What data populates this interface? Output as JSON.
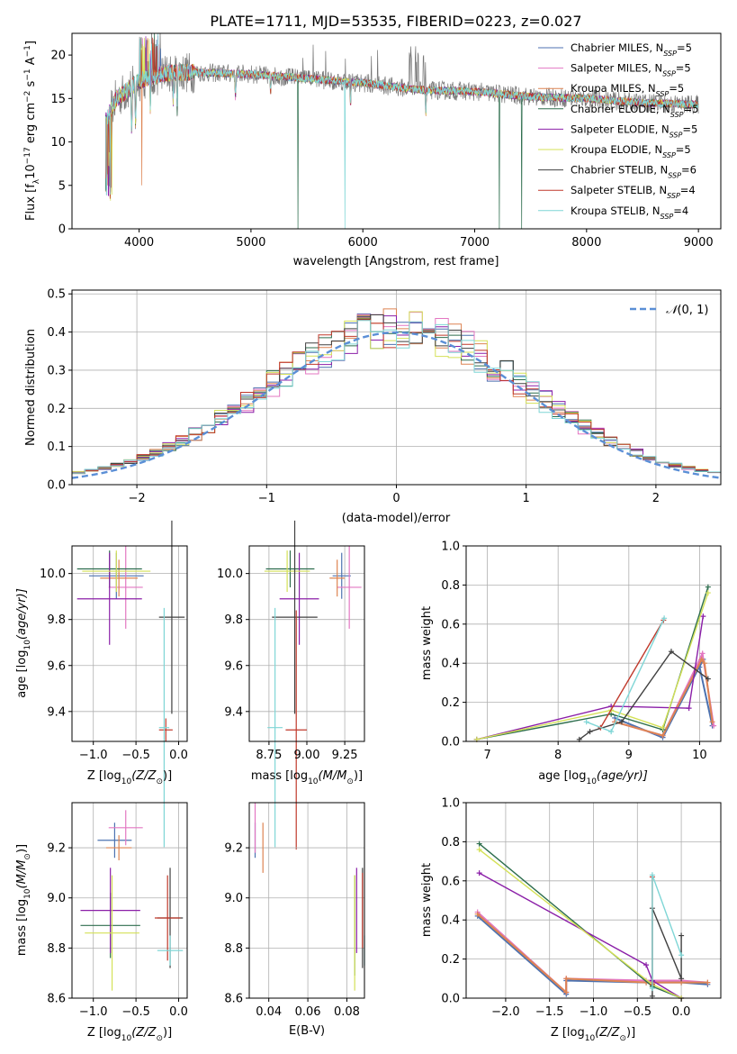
{
  "chart_data": [
    {
      "type": "line",
      "title": "PLATE=1711, MJD=53535, FIBERID=0223, z=0.027",
      "xlabel": "wavelength [Angstrom, rest frame]",
      "ylabel_parts": {
        "a": "Flux [f",
        "b": "λ",
        "c": "10",
        "d": "−17",
        "e": " erg cm",
        "f": "−2",
        "g": " s",
        "h": "−1",
        "i": " A",
        "j": "−1",
        "k": "]"
      },
      "xlim": [
        3400,
        9200
      ],
      "ylim": [
        0,
        22.5
      ],
      "xticks": [
        "4000",
        "5000",
        "6000",
        "7000",
        "8000",
        "9000"
      ],
      "yticks": [
        "0",
        "5",
        "10",
        "15",
        "20"
      ],
      "legend_position": "upper right",
      "legend": [
        {
          "pre": "Chabrier MILES, N",
          "sub": "SSP",
          "post": "=5",
          "color": "#4c72b0"
        },
        {
          "pre": "Salpeter MILES, N",
          "sub": "SSP",
          "post": "=5",
          "color": "#e377c2"
        },
        {
          "pre": "Kroupa MILES, N",
          "sub": "SSP",
          "post": "=5",
          "color": "#dd8452"
        },
        {
          "pre": "Chabrier ELODIE, N",
          "sub": "SSP",
          "post": "=5",
          "color": "#2e6e4e"
        },
        {
          "pre": "Salpeter ELODIE, N",
          "sub": "SSP",
          "post": "=5",
          "color": "#8b1fa8"
        },
        {
          "pre": "Kroupa ELODIE, N",
          "sub": "SSP",
          "post": "=5",
          "color": "#d4e157"
        },
        {
          "pre": "Chabrier STELIB, N",
          "sub": "SSP",
          "post": "=6",
          "color": "#404040"
        },
        {
          "pre": "Salpeter STELIB, N",
          "sub": "SSP",
          "post": "=4",
          "color": "#c0392b"
        },
        {
          "pre": "Kroupa STELIB, N",
          "sub": "SSP",
          "post": "=4",
          "color": "#7fd6d6"
        }
      ],
      "spectrum_profile": {
        "x": [
          3700,
          3800,
          3900,
          4000,
          4100,
          4300,
          4500,
          5000,
          5500,
          6000,
          6500,
          7000,
          7500,
          8000,
          8500,
          9000
        ],
        "y": [
          12.5,
          15.0,
          16.0,
          17.0,
          17.5,
          18.0,
          18.0,
          17.8,
          17.3,
          16.8,
          16.0,
          15.8,
          15.2,
          15.0,
          14.5,
          14.3
        ]
      }
    },
    {
      "type": "histogram",
      "xlabel": "(data-model)/error",
      "ylabel": "Normed distribution",
      "xlim": [
        -2.5,
        2.5
      ],
      "ylim": [
        0,
        0.51
      ],
      "xticks": [
        "−2",
        "−1",
        "0",
        "1",
        "2"
      ],
      "yticks": [
        "0.0",
        "0.1",
        "0.2",
        "0.3",
        "0.4",
        "0.5"
      ],
      "bin_width": 0.1,
      "reference_curve": {
        "name": "N(0,1)",
        "label_script": "𝒩",
        "label_rest": "(0, 1)",
        "color": "#5b8fd6"
      },
      "series": [
        {
          "name": "Chabrier MILES",
          "color": "#4c72b0"
        },
        {
          "name": "Salpeter MILES",
          "color": "#e377c2"
        },
        {
          "name": "Kroupa MILES",
          "color": "#dd8452"
        },
        {
          "name": "Chabrier ELODIE",
          "color": "#2e6e4e"
        },
        {
          "name": "Salpeter ELODIE",
          "color": "#8b1fa8"
        },
        {
          "name": "Kroupa ELODIE",
          "color": "#d4e157"
        },
        {
          "name": "Chabrier STELIB",
          "color": "#404040"
        },
        {
          "name": "Salpeter STELIB",
          "color": "#c0392b"
        },
        {
          "name": "Kroupa STELIB",
          "color": "#7fd6d6"
        }
      ]
    },
    {
      "type": "errorbar",
      "xlabel_parts": {
        "a": "Z [log",
        "b": "10",
        "c": "(Z/Z",
        "d": "⊙",
        "e": ")]"
      },
      "ylabel_parts": {
        "a": "age  [log",
        "b": "10",
        "c": "(age/yr)]"
      },
      "xlim": [
        -1.25,
        0.1
      ],
      "ylim": [
        9.27,
        10.12
      ],
      "xticks": [
        "−1.0",
        "−0.5",
        "0.0"
      ],
      "yticks": [
        "9.4",
        "9.6",
        "9.8",
        "10.0"
      ],
      "points": [
        {
          "x": -0.73,
          "y": 9.99,
          "xerr": 0.32,
          "yerr": 0.1,
          "color": "#4c72b0"
        },
        {
          "x": -0.62,
          "y": 9.94,
          "xerr": 0.2,
          "yerr": 0.18,
          "color": "#e377c2"
        },
        {
          "x": -0.7,
          "y": 9.98,
          "xerr": 0.22,
          "yerr": 0.08,
          "color": "#dd8452"
        },
        {
          "x": -0.81,
          "y": 10.02,
          "xerr": 0.38,
          "yerr": 0.08,
          "color": "#2e6e4e"
        },
        {
          "x": -0.81,
          "y": 9.89,
          "xerr": 0.38,
          "yerr": 0.2,
          "color": "#8b1fa8"
        },
        {
          "x": -0.73,
          "y": 10.01,
          "xerr": 0.4,
          "yerr": 0.09,
          "color": "#d4e157"
        },
        {
          "x": -0.08,
          "y": 9.81,
          "xerr": 0.15,
          "yerr": 0.42,
          "color": "#404040"
        },
        {
          "x": -0.15,
          "y": 9.32,
          "xerr": 0.08,
          "yerr": 0.05,
          "color": "#c0392b"
        },
        {
          "x": -0.17,
          "y": 9.33,
          "xerr": 0.06,
          "yerr": 0.52,
          "color": "#7fd6d6"
        }
      ]
    },
    {
      "type": "errorbar",
      "xlabel_parts": {
        "a": "mass [log",
        "b": "10",
        "c": "(M/M",
        "d": "⊙",
        "e": ")]"
      },
      "ylabel": "",
      "xlim": [
        8.62,
        9.38
      ],
      "ylim": [
        9.27,
        10.12
      ],
      "xticks": [
        "8.75",
        "9.00",
        "9.25"
      ],
      "yticks": [
        "9.4",
        "9.6",
        "9.8",
        "10.0"
      ],
      "points": [
        {
          "x": 9.23,
          "y": 9.99,
          "xerr": 0.06,
          "yerr": 0.1,
          "color": "#4c72b0"
        },
        {
          "x": 9.28,
          "y": 9.94,
          "xerr": 0.08,
          "yerr": 0.18,
          "color": "#e377c2"
        },
        {
          "x": 9.2,
          "y": 9.98,
          "xerr": 0.05,
          "yerr": 0.08,
          "color": "#dd8452"
        },
        {
          "x": 8.89,
          "y": 10.02,
          "xerr": 0.16,
          "yerr": 0.08,
          "color": "#2e6e4e"
        },
        {
          "x": 8.95,
          "y": 9.89,
          "xerr": 0.13,
          "yerr": 0.2,
          "color": "#8b1fa8"
        },
        {
          "x": 8.87,
          "y": 10.01,
          "xerr": 0.15,
          "yerr": 0.09,
          "color": "#d4e157"
        },
        {
          "x": 8.92,
          "y": 9.81,
          "xerr": 0.15,
          "yerr": 0.42,
          "color": "#404040"
        },
        {
          "x": 8.93,
          "y": 9.32,
          "xerr": 0.07,
          "yerr": 0.52,
          "color": "#c0392b"
        },
        {
          "x": 8.79,
          "y": 9.33,
          "xerr": 0.05,
          "yerr": 0.52,
          "color": "#7fd6d6"
        }
      ]
    },
    {
      "type": "line",
      "xlabel_parts": {
        "a": "age  [log",
        "b": "10",
        "c": "(age/yr)]"
      },
      "ylabel": "mass weight",
      "xlim": [
        6.7,
        10.3
      ],
      "ylim": [
        0,
        1.0
      ],
      "xticks": [
        "7",
        "8",
        "9",
        "10"
      ],
      "yticks": [
        "0.0",
        "0.2",
        "0.4",
        "0.6",
        "0.8",
        "1.0"
      ],
      "series": [
        {
          "name": "Chabrier MILES",
          "color": "#4c72b0",
          "x": [
            8.8,
            9.48,
            10.05,
            10.0,
            10.18
          ],
          "y": [
            0.12,
            0.02,
            0.42,
            0.38,
            0.08
          ]
        },
        {
          "name": "Salpeter MILES",
          "color": "#e377c2",
          "x": [
            8.8,
            9.48,
            9.95,
            10.04,
            10.2
          ],
          "y": [
            0.1,
            0.03,
            0.38,
            0.45,
            0.08
          ]
        },
        {
          "name": "Kroupa MILES",
          "color": "#dd8452",
          "x": [
            8.8,
            9.48,
            10.03,
            10.07,
            10.18
          ],
          "y": [
            0.1,
            0.03,
            0.42,
            0.4,
            0.1
          ]
        },
        {
          "name": "Chabrier ELODIE",
          "color": "#2e6e4e",
          "x": [
            6.85,
            8.75,
            9.48,
            10.12
          ],
          "y": [
            0.01,
            0.14,
            0.06,
            0.79
          ]
        },
        {
          "name": "Salpeter ELODIE",
          "color": "#8b1fa8",
          "x": [
            6.85,
            8.75,
            9.85,
            10.05
          ],
          "y": [
            0.01,
            0.18,
            0.17,
            0.64
          ]
        },
        {
          "name": "Kroupa ELODIE",
          "color": "#d4e157",
          "x": [
            6.85,
            8.75,
            9.48,
            10.12
          ],
          "y": [
            0.01,
            0.16,
            0.07,
            0.76
          ]
        },
        {
          "name": "Chabrier STELIB",
          "color": "#404040",
          "x": [
            8.3,
            8.45,
            8.9,
            9.6,
            10.12
          ],
          "y": [
            0.01,
            0.05,
            0.1,
            0.46,
            0.32
          ]
        },
        {
          "name": "Salpeter STELIB",
          "color": "#c0392b",
          "x": [
            8.6,
            9.49
          ],
          "y": [
            0.07,
            0.62
          ]
        },
        {
          "name": "Kroupa STELIB",
          "color": "#7fd6d6",
          "x": [
            8.4,
            8.75,
            9.5
          ],
          "y": [
            0.1,
            0.05,
            0.63
          ]
        }
      ]
    },
    {
      "type": "errorbar",
      "xlabel_parts": {
        "a": "Z [log",
        "b": "10",
        "c": "(Z/Z",
        "d": "⊙",
        "e": ")]"
      },
      "ylabel_parts": {
        "a": "mass [log",
        "b": "10",
        "c": "(M/M",
        "d": "⊙",
        "e": ")]"
      },
      "xlim": [
        -1.25,
        0.1
      ],
      "ylim": [
        8.6,
        9.38
      ],
      "xticks": [
        "−1.0",
        "−0.5",
        "0.0"
      ],
      "yticks": [
        "8.6",
        "8.8",
        "9.0",
        "9.2"
      ],
      "points": [
        {
          "x": -0.75,
          "y": 9.23,
          "xerr": 0.2,
          "yerr": 0.07,
          "color": "#4c72b0"
        },
        {
          "x": -0.62,
          "y": 9.28,
          "xerr": 0.2,
          "yerr": 0.07,
          "color": "#e377c2"
        },
        {
          "x": -0.7,
          "y": 9.2,
          "xerr": 0.15,
          "yerr": 0.05,
          "color": "#dd8452"
        },
        {
          "x": -0.8,
          "y": 8.89,
          "xerr": 0.35,
          "yerr": 0.13,
          "color": "#2e6e4e"
        },
        {
          "x": -0.8,
          "y": 8.95,
          "xerr": 0.35,
          "yerr": 0.17,
          "color": "#8b1fa8"
        },
        {
          "x": -0.78,
          "y": 8.86,
          "xerr": 0.32,
          "yerr": 0.23,
          "color": "#d4e157"
        },
        {
          "x": -0.1,
          "y": 8.92,
          "xerr": 0.15,
          "yerr": 0.2,
          "color": "#404040"
        },
        {
          "x": -0.13,
          "y": 8.92,
          "xerr": 0.15,
          "yerr": 0.17,
          "color": "#c0392b"
        },
        {
          "x": -0.1,
          "y": 8.79,
          "xerr": 0.15,
          "yerr": 0.06,
          "color": "#7fd6d6"
        }
      ]
    },
    {
      "type": "errorbar",
      "xlabel": "E(B-V)",
      "ylabel": "",
      "xlim": [
        0.03,
        0.089
      ],
      "ylim": [
        8.6,
        9.38
      ],
      "xticks": [
        "0.04",
        "0.06",
        "0.08"
      ],
      "yticks": [
        "8.6",
        "8.8",
        "9.0",
        "9.2"
      ],
      "points": [
        {
          "x": 0.033,
          "y": 9.23,
          "xerr": 0,
          "yerr": 0.07,
          "color": "#4c72b0"
        },
        {
          "x": 0.033,
          "y": 9.28,
          "xerr": 0,
          "yerr": 0.1,
          "color": "#e377c2"
        },
        {
          "x": 0.037,
          "y": 9.2,
          "xerr": 0,
          "yerr": 0.1,
          "color": "#dd8452"
        },
        {
          "x": 0.084,
          "y": 8.89,
          "xerr": 0,
          "yerr": 0.2,
          "color": "#2e6e4e"
        },
        {
          "x": 0.085,
          "y": 8.95,
          "xerr": 0,
          "yerr": 0.17,
          "color": "#8b1fa8"
        },
        {
          "x": 0.084,
          "y": 8.86,
          "xerr": 0,
          "yerr": 0.23,
          "color": "#d4e157"
        },
        {
          "x": 0.088,
          "y": 8.92,
          "xerr": 0,
          "yerr": 0.2,
          "color": "#404040"
        },
        {
          "x": 0.088,
          "y": 8.95,
          "xerr": 0,
          "yerr": 0.15,
          "color": "#c0392b"
        },
        {
          "x": 0.089,
          "y": 8.79,
          "xerr": 0,
          "yerr": 0.06,
          "color": "#7fd6d6"
        }
      ]
    },
    {
      "type": "line",
      "xlabel_parts": {
        "a": "Z [log",
        "b": "10",
        "c": "(Z/Z",
        "d": "⊙",
        "e": ")]"
      },
      "ylabel": "mass weight",
      "xlim": [
        -2.45,
        0.45
      ],
      "ylim": [
        0,
        1.0
      ],
      "xticks": [
        "−2.0",
        "−1.5",
        "−1.0",
        "−0.5",
        "0.0"
      ],
      "yticks": [
        "0.0",
        "0.2",
        "0.4",
        "0.6",
        "0.8",
        "1.0"
      ],
      "series": [
        {
          "name": "Chabrier MILES",
          "color": "#4c72b0",
          "x": [
            -2.32,
            -1.31,
            -1.31,
            -0.4,
            0.0,
            0.3
          ],
          "y": [
            0.42,
            0.02,
            0.09,
            0.08,
            0.08,
            0.07
          ]
        },
        {
          "name": "Salpeter MILES",
          "color": "#e377c2",
          "x": [
            -2.32,
            -1.31,
            -1.31,
            -0.4,
            0.0,
            0.3
          ],
          "y": [
            0.44,
            0.03,
            0.1,
            0.09,
            0.09,
            0.08
          ]
        },
        {
          "name": "Kroupa MILES",
          "color": "#dd8452",
          "x": [
            -2.32,
            -1.31,
            -1.31,
            -0.4,
            0.0,
            0.3
          ],
          "y": [
            0.43,
            0.03,
            0.1,
            0.08,
            0.08,
            0.08
          ]
        },
        {
          "name": "Chabrier ELODIE",
          "color": "#2e6e4e",
          "x": [
            -2.3,
            -0.33,
            0.0
          ],
          "y": [
            0.79,
            0.06,
            0.0
          ]
        },
        {
          "name": "Salpeter ELODIE",
          "color": "#8b1fa8",
          "x": [
            -2.3,
            -0.4,
            -0.33,
            0.0
          ],
          "y": [
            0.64,
            0.17,
            0.09,
            0.0
          ]
        },
        {
          "name": "Kroupa ELODIE",
          "color": "#d4e157",
          "x": [
            -2.3,
            -0.33,
            0.0
          ],
          "y": [
            0.76,
            0.07,
            0.0
          ]
        },
        {
          "name": "Chabrier STELIB",
          "color": "#404040",
          "x": [
            -0.33,
            -0.33,
            0.0,
            0.0
          ],
          "y": [
            0.01,
            0.46,
            0.1,
            0.32
          ]
        },
        {
          "name": "Salpeter STELIB",
          "color": "#c0392b",
          "x": [
            -0.33,
            -0.33
          ],
          "y": [
            0.07,
            0.62
          ]
        },
        {
          "name": "Kroupa STELIB",
          "color": "#7fd6d6",
          "x": [
            -0.33,
            -0.33,
            0.0
          ],
          "y": [
            0.05,
            0.63,
            0.22
          ]
        }
      ]
    }
  ]
}
